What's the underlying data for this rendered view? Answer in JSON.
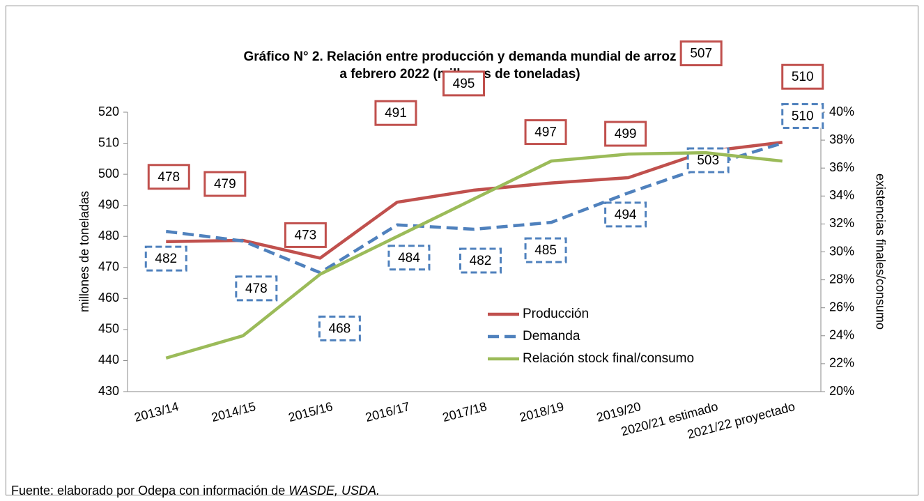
{
  "chart_data": {
    "type": "line",
    "title": [
      "Gráfico N° 2. Relación entre producción y demanda mundial de arroz",
      "a febrero 2022 (millones de toneladas)"
    ],
    "y_label": "millones de toneladas",
    "y2_label": "existencias finales/consumo",
    "categories": [
      "2013/14",
      "2014/15",
      "2015/16",
      "2016/17",
      "2017/18",
      "2018/19",
      "2019/20",
      "2020/21 estimado",
      "2021/22 proyectado"
    ],
    "ylim": [
      430,
      520
    ],
    "yticks": [
      430,
      440,
      450,
      460,
      470,
      480,
      490,
      500,
      510,
      520
    ],
    "y2lim": [
      20,
      40
    ],
    "y2ticks": [
      {
        "value": 20,
        "label": "20%"
      },
      {
        "value": 22,
        "label": "22%"
      },
      {
        "value": 24,
        "label": "24%"
      },
      {
        "value": 26,
        "label": "26%"
      },
      {
        "value": 28,
        "label": "28%"
      },
      {
        "value": 30,
        "label": "30%"
      },
      {
        "value": 32,
        "label": "32%"
      },
      {
        "value": 34,
        "label": "34%"
      },
      {
        "value": 36,
        "label": "36%"
      },
      {
        "value": 38,
        "label": "38%"
      },
      {
        "value": 40,
        "label": "40%"
      }
    ],
    "legend": "center",
    "series": [
      {
        "name": "Producción",
        "color": "#c0504d",
        "dash": false,
        "values": [
          478.3,
          478.7,
          473.0,
          491.0,
          494.9,
          497.2,
          498.9,
          507.3,
          510.3
        ],
        "value_labels": [
          "478",
          "479",
          "473",
          "491",
          "495",
          "497",
          "499",
          "507",
          "510"
        ]
      },
      {
        "name": "Demanda",
        "color": "#4f81bd",
        "dash": true,
        "values": [
          481.6,
          478.5,
          468.3,
          483.7,
          482.3,
          484.5,
          494.0,
          502.5,
          510.0
        ],
        "value_labels": [
          "482",
          "478",
          "468",
          "484",
          "482",
          "485",
          "494",
          "503",
          "510"
        ]
      },
      {
        "name": "Relación stock final/consumo",
        "color": "#9bbb59",
        "dash": false,
        "axis": "y2",
        "values": [
          22.4,
          24.0,
          28.4,
          31.1,
          33.8,
          36.5,
          37.0,
          37.1,
          36.5
        ]
      }
    ]
  },
  "source": {
    "text": "Fuente: elaborado por Odepa con información de ",
    "italic": "WASDE, USDA."
  }
}
